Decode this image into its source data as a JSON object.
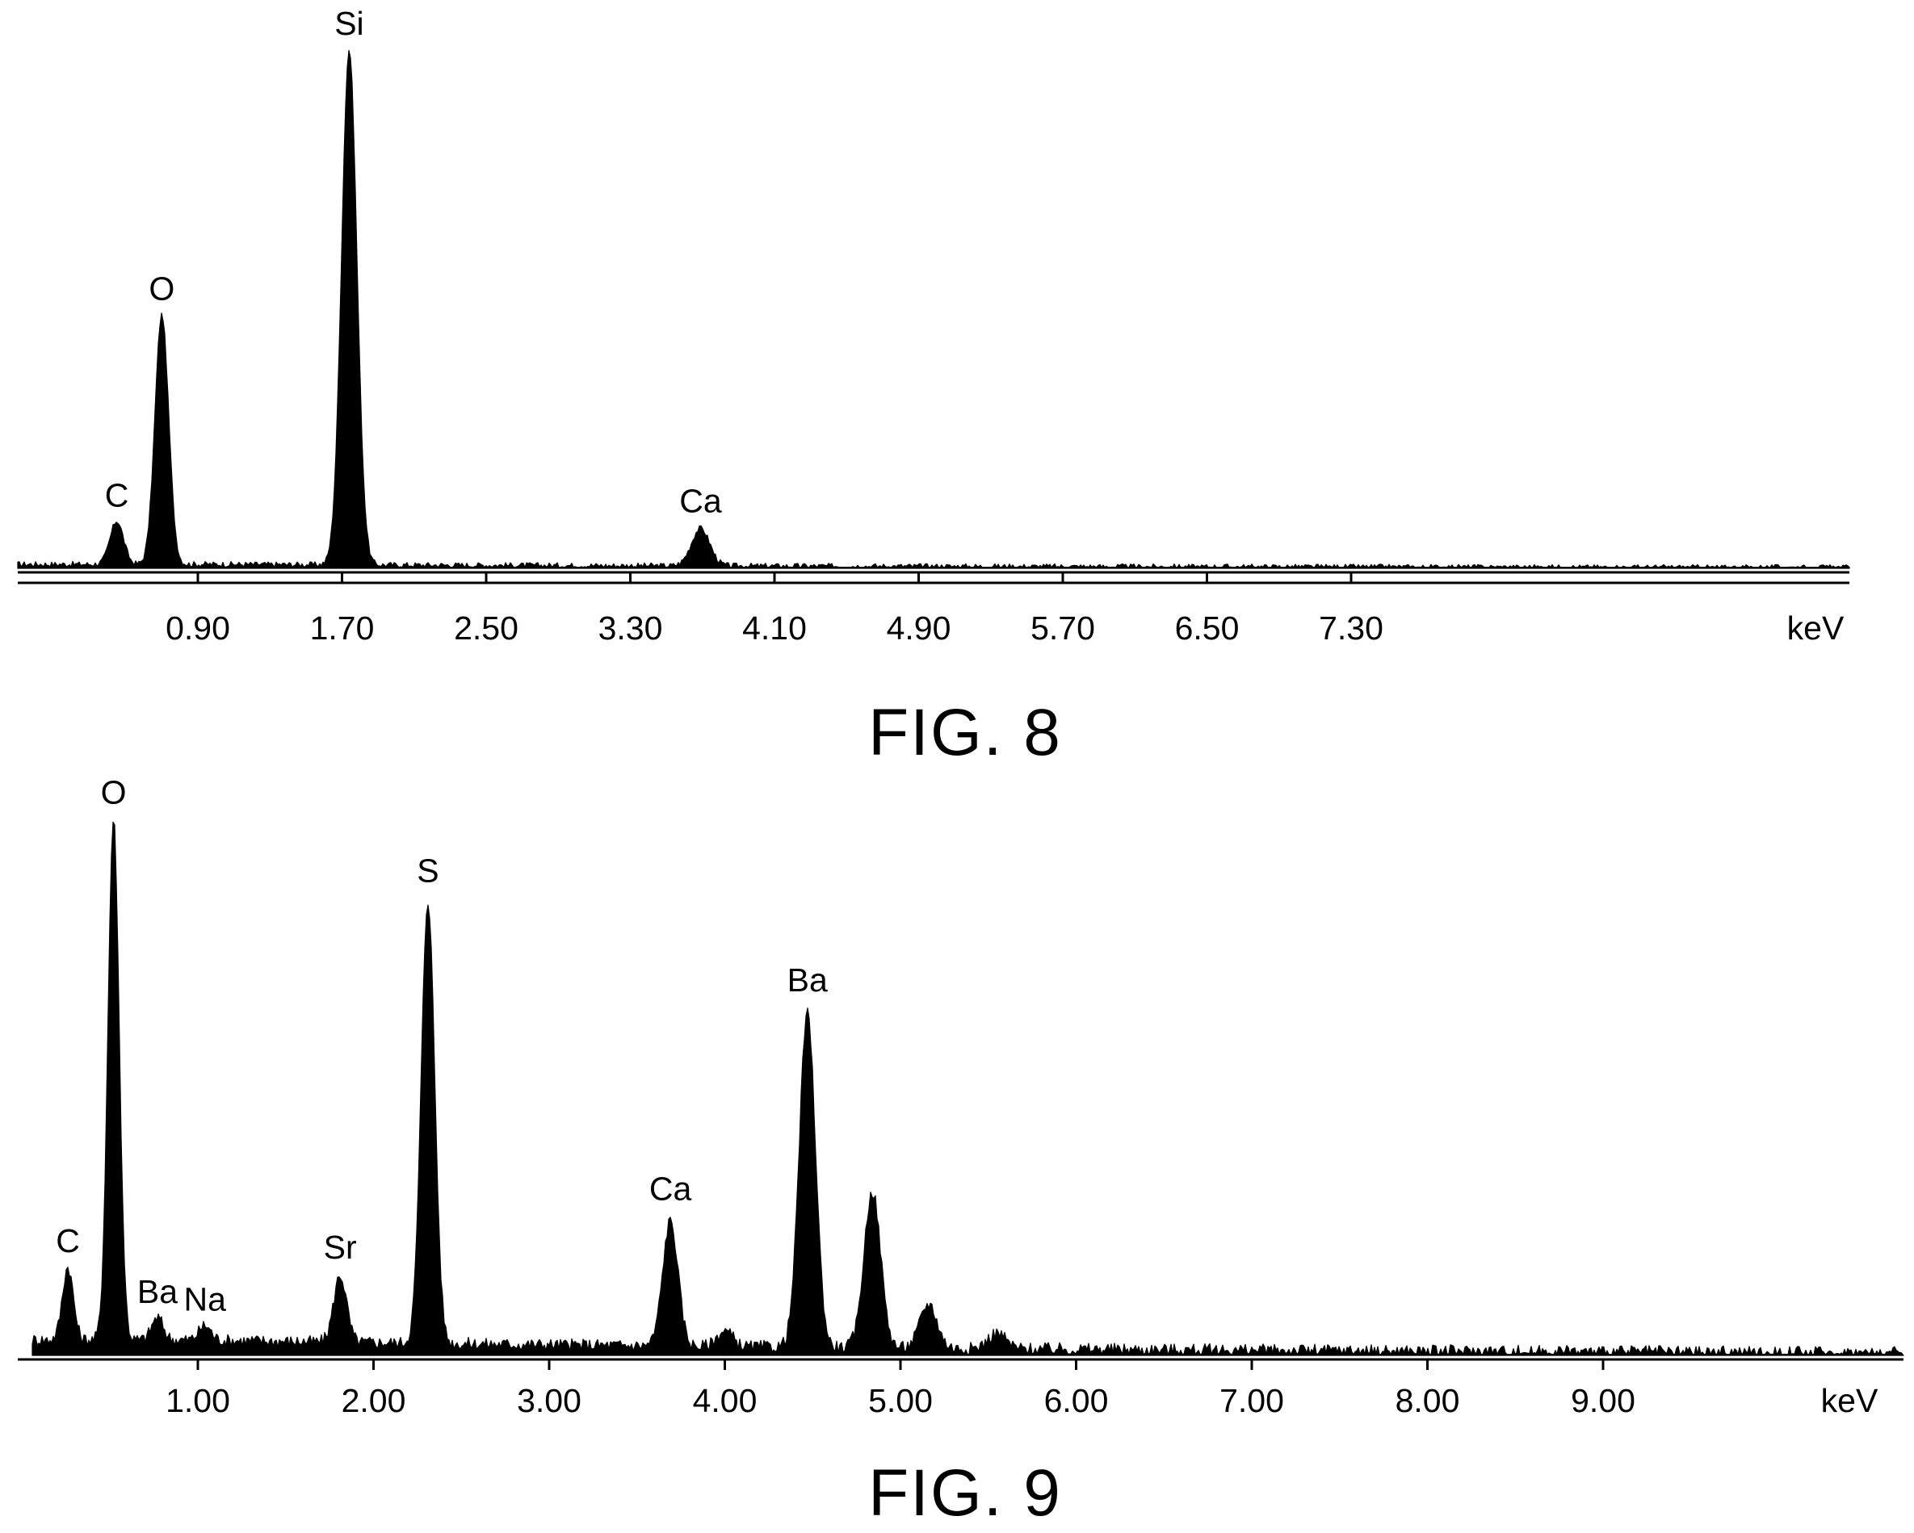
{
  "colors": {
    "ink": "#000000",
    "background": "#ffffff"
  },
  "chart_data": [
    {
      "type": "area",
      "caption": "FIG. 8",
      "unit_label": "keV",
      "xlim": [
        0.3,
        8.45
      ],
      "ylim": [
        0,
        100
      ],
      "x_ticks": [
        0.9,
        1.7,
        2.5,
        3.3,
        4.1,
        4.9,
        5.7,
        6.5,
        7.3
      ],
      "tick_labels": [
        "0.90",
        "1.70",
        "2.50",
        "3.30",
        "4.10",
        "4.90",
        "5.70",
        "6.50",
        "7.30"
      ],
      "peaks": [
        {
          "label": "C",
          "x": 0.45,
          "y": 8.4
        },
        {
          "label": "O",
          "x": 0.7,
          "y": 48.5
        },
        {
          "label": "Si",
          "x": 1.74,
          "y": 100
        },
        {
          "label": "Ca",
          "x": 3.69,
          "y": 7.3
        }
      ],
      "baseline": 0.8
    },
    {
      "type": "area",
      "caption": "FIG. 9",
      "unit_label": "keV",
      "xlim": [
        0.0,
        10.4
      ],
      "ylim": [
        0,
        100
      ],
      "x_ticks": [
        1,
        2,
        3,
        4,
        5,
        6,
        7,
        8,
        9
      ],
      "tick_labels": [
        "1.00",
        "2.00",
        "3.00",
        "4.00",
        "5.00",
        "6.00",
        "7.00",
        "8.00",
        "9.00"
      ],
      "peaks": [
        {
          "label": "C",
          "x": 0.26,
          "y": 14
        },
        {
          "label": "O",
          "x": 0.52,
          "y": 100
        },
        {
          "label": "Ba",
          "x": 0.77,
          "y": 4.3
        },
        {
          "label": "Na",
          "x": 1.04,
          "y": 2.8
        },
        {
          "label": "Sr",
          "x": 1.81,
          "y": 12.8
        },
        {
          "label": "S",
          "x": 2.31,
          "y": 85
        },
        {
          "label": "Ca",
          "x": 3.69,
          "y": 24
        },
        {
          "label": "Ba",
          "x": 4.47,
          "y": 64
        },
        {
          "label": "",
          "x": 4.84,
          "y": 30
        },
        {
          "label": "",
          "x": 5.16,
          "y": 8.5
        },
        {
          "label": "",
          "x": 5.55,
          "y": 3
        },
        {
          "label": "",
          "x": 4.0,
          "y": 3
        }
      ],
      "baseline": 3
    }
  ]
}
